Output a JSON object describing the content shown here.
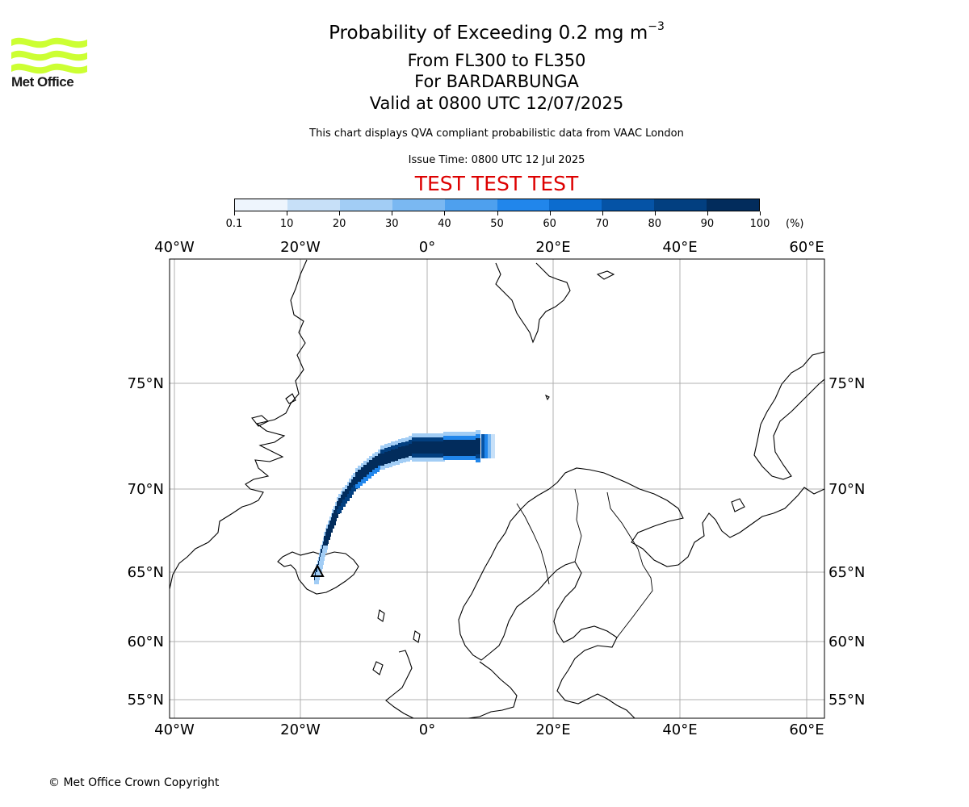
{
  "logo": {
    "text": "Met Office",
    "color": "#ccff33",
    "icon": "met-office-waves-logo"
  },
  "header": {
    "title": "Probability of Exceeding 0.2 mg m",
    "title_exponent": "−3",
    "level_range": "From FL300 to FL350",
    "volcano": "For BARDARBUNGA",
    "valid_time": "Valid at 0800 UTC 12/07/2025",
    "description": "This chart displays QVA compliant probabilistic data from VAAC London",
    "issue_time": "Issue Time: 0800 UTC 12 Jul 2025",
    "test_banner": "TEST TEST TEST",
    "test_color": "#dd0000"
  },
  "colorbar": {
    "ticks": [
      "0.1",
      "10",
      "20",
      "30",
      "40",
      "50",
      "60",
      "70",
      "80",
      "90",
      "100"
    ],
    "unit": "(%)",
    "colors": [
      "#eef5fd",
      "#c7e0f8",
      "#a2cdf5",
      "#7ab8f2",
      "#4ea0ee",
      "#2186eb",
      "#0c6ccf",
      "#0553a6",
      "#023f80",
      "#022c5c"
    ]
  },
  "map": {
    "lon_labels": [
      "40°W",
      "20°W",
      "0°",
      "20°E",
      "40°E",
      "60°E"
    ],
    "lat_labels": [
      "75°N",
      "70°N",
      "65°N",
      "60°N",
      "55°N"
    ],
    "grid": true,
    "lon_range": [
      -40,
      60
    ],
    "lat_range": [
      54,
      80
    ],
    "plume": {
      "source": "BARDARBUNGA",
      "path": [
        [
          -17.5,
          64.6
        ],
        [
          -16,
          67
        ],
        [
          -14,
          69
        ],
        [
          -11,
          70.5
        ],
        [
          -7,
          71.5
        ],
        [
          -2,
          72
        ],
        [
          3,
          72
        ],
        [
          8,
          72
        ]
      ],
      "max_probability": 100
    }
  },
  "footer": {
    "copyright": "© Met Office Crown Copyright"
  }
}
